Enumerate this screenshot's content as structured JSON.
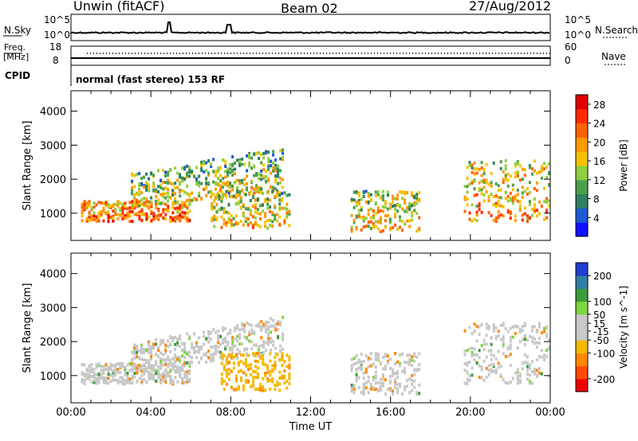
{
  "header": {
    "station": "Unwin (fitACF)",
    "beam": "Beam 02",
    "date": "27/Aug/2012"
  },
  "status_panel": {
    "nsky_label": "N.Sky",
    "nsearch_label": "N.Search",
    "noise_ticks": [
      "10^5",
      "10^0"
    ],
    "freq_label": "Freq.",
    "freq_unit": "[MHz]",
    "freq_ticks": [
      "18",
      "8"
    ],
    "nave_label": "Nave",
    "nave_ticks": [
      "60",
      "0"
    ],
    "cpid_label": "CPID",
    "cpid_text": "normal (fast stereo) 153 RF"
  },
  "colors": {
    "power_scale": [
      "#1010ff",
      "#1e5ad2",
      "#2f7f5f",
      "#4c9f4c",
      "#8fcf3f",
      "#f5c400",
      "#ff9a00",
      "#ff6200",
      "#ff2a00",
      "#e00000"
    ],
    "velocity_scale": [
      "#ee0000",
      "#ff4a00",
      "#ff8a00",
      "#f5b800",
      "#c8c8c8",
      "#c8c8c8",
      "#7fd640",
      "#3c9c3c",
      "#2f7fa0",
      "#1f3fd0"
    ],
    "ground_scatter": "#c8c8c8"
  },
  "chart_data": [
    {
      "type": "heatmap",
      "panel": "power",
      "xlabel": "Time UT",
      "ylabel": "Slant Range [km]",
      "x_ticks": [
        "00:00",
        "04:00",
        "08:00",
        "12:00",
        "16:00",
        "20:00",
        "00:00"
      ],
      "y_ticks": [
        1000,
        2000,
        3000,
        4000
      ],
      "xlim_hours": [
        0,
        24
      ],
      "ylim": [
        200,
        4600
      ],
      "colorbar": {
        "label": "Power [dB]",
        "ticks": [
          4,
          8,
          12,
          16,
          20,
          24,
          28
        ],
        "range": [
          0,
          30
        ]
      },
      "regions": [
        {
          "start": "00:30",
          "end": "06:00",
          "range_low": 800,
          "range_high": 1400,
          "mean_power": 24
        },
        {
          "start": "03:00",
          "end": "10:40",
          "range_low": 1200,
          "range_high": 3000,
          "mean_power": 16
        },
        {
          "start": "07:00",
          "end": "11:00",
          "range_low": 600,
          "range_high": 1700,
          "mean_power": 18
        },
        {
          "start": "14:00",
          "end": "17:30",
          "range_low": 500,
          "range_high": 1700,
          "mean_power": 18
        },
        {
          "start": "19:40",
          "end": "24:00",
          "range_low": 800,
          "range_high": 2600,
          "mean_power": 20
        }
      ]
    },
    {
      "type": "heatmap",
      "panel": "velocity",
      "xlabel": "Time UT",
      "ylabel": "Slant Range [km]",
      "x_ticks": [
        "00:00",
        "04:00",
        "08:00",
        "12:00",
        "16:00",
        "20:00",
        "00:00"
      ],
      "y_ticks": [
        1000,
        2000,
        3000,
        4000
      ],
      "xlim_hours": [
        0,
        24
      ],
      "ylim": [
        200,
        4600
      ],
      "colorbar": {
        "label": "Velocity [m s^-1]",
        "ticks": [
          200,
          100,
          50,
          15,
          -15,
          -50,
          -100,
          -200
        ],
        "range": [
          -250,
          250
        ]
      },
      "regions": [
        {
          "start": "00:30",
          "end": "06:00",
          "range_low": 800,
          "range_high": 1400,
          "dominant": "ground scatter"
        },
        {
          "start": "03:00",
          "end": "10:40",
          "range_low": 1200,
          "range_high": 2800,
          "dominant": "ground scatter with negative patches"
        },
        {
          "start": "07:30",
          "end": "11:00",
          "range_low": 600,
          "range_high": 1700,
          "mean_velocity": -50
        },
        {
          "start": "14:00",
          "end": "17:30",
          "range_low": 500,
          "range_high": 1700,
          "dominant": "ground scatter"
        },
        {
          "start": "19:40",
          "end": "24:00",
          "range_low": 800,
          "range_high": 2600,
          "dominant": "ground scatter with positive patches"
        }
      ]
    }
  ]
}
